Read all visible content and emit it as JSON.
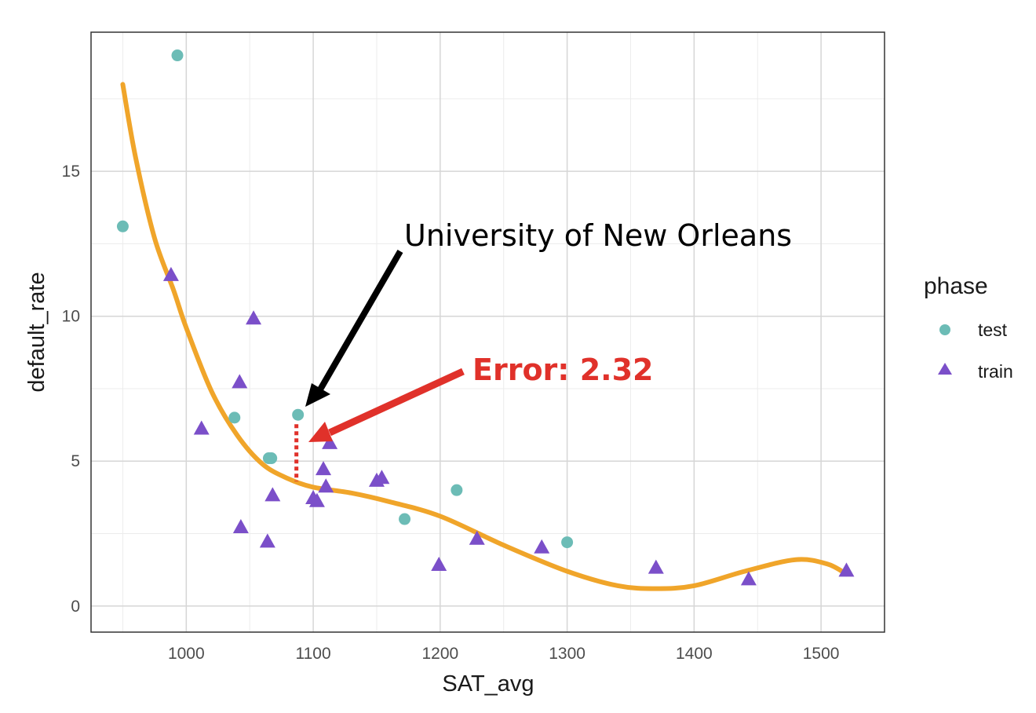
{
  "chart_data": {
    "type": "scatter",
    "xlabel": "SAT_avg",
    "ylabel": "default_rate",
    "xlim": [
      925,
      1550
    ],
    "ylim": [
      -0.9,
      19.8
    ],
    "x_ticks": [
      1000,
      1100,
      1200,
      1300,
      1400,
      1500
    ],
    "y_ticks": [
      0,
      5,
      10,
      15
    ],
    "grid": true,
    "legend": {
      "title": "phase",
      "placement": "right",
      "entries": [
        {
          "label": "test",
          "shape": "circle",
          "color": "#6cbcb6"
        },
        {
          "label": "train",
          "shape": "triangle",
          "color": "#7b4fc9"
        }
      ]
    },
    "series": [
      {
        "name": "test",
        "marker": "circle",
        "color": "#6cbcb6",
        "points": [
          {
            "x": 950,
            "y": 13.1
          },
          {
            "x": 993,
            "y": 19.0
          },
          {
            "x": 1038,
            "y": 6.5
          },
          {
            "x": 1065,
            "y": 5.1
          },
          {
            "x": 1067,
            "y": 5.1
          },
          {
            "x": 1088,
            "y": 6.6
          },
          {
            "x": 1172,
            "y": 3.0
          },
          {
            "x": 1213,
            "y": 4.0
          },
          {
            "x": 1300,
            "y": 2.2
          }
        ]
      },
      {
        "name": "train",
        "marker": "triangle",
        "color": "#7b4fc9",
        "points": [
          {
            "x": 988,
            "y": 11.4
          },
          {
            "x": 1012,
            "y": 6.1
          },
          {
            "x": 1042,
            "y": 7.7
          },
          {
            "x": 1043,
            "y": 2.7
          },
          {
            "x": 1053,
            "y": 9.9
          },
          {
            "x": 1064,
            "y": 2.2
          },
          {
            "x": 1068,
            "y": 3.8
          },
          {
            "x": 1100,
            "y": 3.7
          },
          {
            "x": 1103,
            "y": 3.6
          },
          {
            "x": 1108,
            "y": 4.7
          },
          {
            "x": 1110,
            "y": 4.1
          },
          {
            "x": 1113,
            "y": 5.6
          },
          {
            "x": 1150,
            "y": 4.3
          },
          {
            "x": 1154,
            "y": 4.4
          },
          {
            "x": 1199,
            "y": 1.4
          },
          {
            "x": 1229,
            "y": 2.3
          },
          {
            "x": 1280,
            "y": 2.0
          },
          {
            "x": 1370,
            "y": 1.3
          },
          {
            "x": 1443,
            "y": 0.9
          },
          {
            "x": 1520,
            "y": 1.2
          }
        ]
      }
    ],
    "fit_line": {
      "color": "#f0a52a",
      "points": [
        [
          950,
          18.0
        ],
        [
          960,
          15.5
        ],
        [
          975,
          12.7
        ],
        [
          990,
          10.9
        ],
        [
          1000,
          9.6
        ],
        [
          1020,
          7.4
        ],
        [
          1040,
          5.9
        ],
        [
          1060,
          4.9
        ],
        [
          1080,
          4.4
        ],
        [
          1100,
          4.1
        ],
        [
          1130,
          3.9
        ],
        [
          1160,
          3.6
        ],
        [
          1200,
          3.1
        ],
        [
          1250,
          2.1
        ],
        [
          1300,
          1.2
        ],
        [
          1340,
          0.7
        ],
        [
          1370,
          0.6
        ],
        [
          1400,
          0.7
        ],
        [
          1440,
          1.2
        ],
        [
          1480,
          1.6
        ],
        [
          1505,
          1.45
        ],
        [
          1520,
          1.1
        ]
      ]
    },
    "annotations": {
      "label": {
        "text": "University of New Orleans",
        "color": "#000000",
        "points_to": {
          "x": 1088,
          "y": 6.6
        }
      },
      "error": {
        "text": "Error: 2.32",
        "color": "#e0312a",
        "residual": {
          "x": 1088,
          "y_from": 4.3,
          "y_to": 6.6
        }
      }
    }
  }
}
